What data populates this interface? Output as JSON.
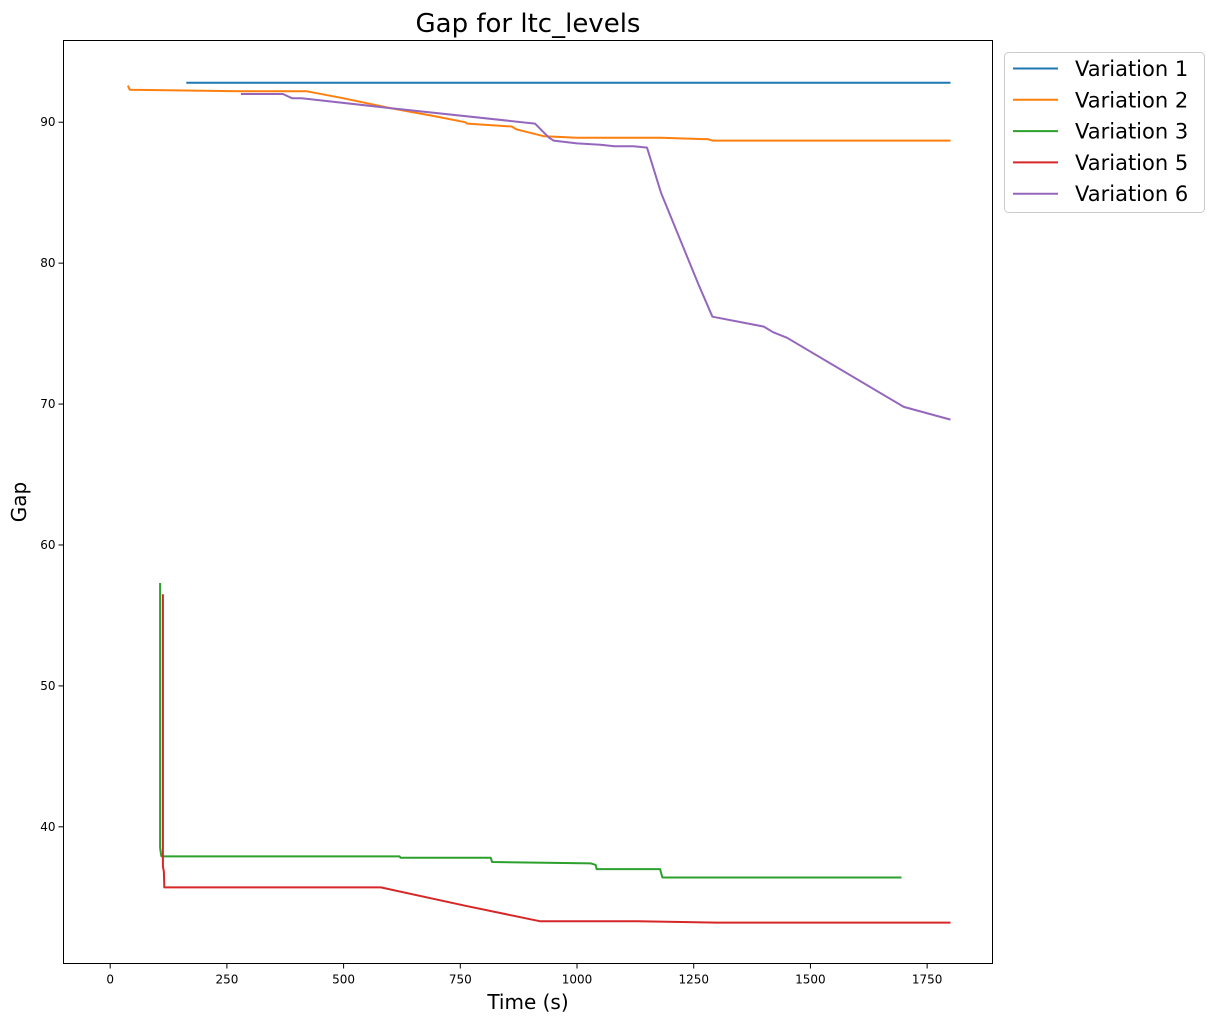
{
  "chart_data": {
    "type": "line",
    "title": "Gap for ltc_levels",
    "xlabel": "Time (s)",
    "ylabel": "Gap",
    "xlim": [
      -100,
      1890
    ],
    "ylim": [
      30.3,
      95.8
    ],
    "xticks": [
      0,
      250,
      500,
      750,
      1000,
      1250,
      1500,
      1750
    ],
    "yticks": [
      40,
      50,
      60,
      70,
      80,
      90
    ],
    "grid": false,
    "legend_position": "outside-top-right",
    "series": [
      {
        "name": "Variation 1",
        "color": "#1f77b4",
        "points": [
          [
            163,
            92.8
          ],
          [
            1800,
            92.8
          ]
        ]
      },
      {
        "name": "Variation 2",
        "color": "#ff7f0e",
        "points": [
          [
            38,
            92.6
          ],
          [
            42,
            92.3
          ],
          [
            280,
            92.2
          ],
          [
            420,
            92.2
          ],
          [
            500,
            91.7
          ],
          [
            600,
            91.0
          ],
          [
            700,
            90.4
          ],
          [
            760,
            90.0
          ],
          [
            765,
            89.9
          ],
          [
            860,
            89.7
          ],
          [
            870,
            89.5
          ],
          [
            930,
            89.0
          ],
          [
            1000,
            88.9
          ],
          [
            1180,
            88.9
          ],
          [
            1270,
            88.8
          ],
          [
            1280,
            88.8
          ],
          [
            1290,
            88.7
          ],
          [
            1800,
            88.7
          ]
        ]
      },
      {
        "name": "Variation 3",
        "color": "#2ca02c",
        "points": [
          [
            107,
            57.3
          ],
          [
            107,
            38.5
          ],
          [
            109,
            38.0
          ],
          [
            110,
            37.9
          ],
          [
            620,
            37.9
          ],
          [
            622,
            37.8
          ],
          [
            815,
            37.8
          ],
          [
            818,
            37.5
          ],
          [
            1030,
            37.4
          ],
          [
            1040,
            37.3
          ],
          [
            1042,
            37.0
          ],
          [
            1178,
            37.0
          ],
          [
            1183,
            36.4
          ],
          [
            1695,
            36.4
          ]
        ]
      },
      {
        "name": "Variation 5",
        "color": "#d62728",
        "points": [
          [
            113,
            56.5
          ],
          [
            113,
            37.2
          ],
          [
            115,
            36.8
          ],
          [
            116,
            35.7
          ],
          [
            580,
            35.7
          ],
          [
            760,
            34.4
          ],
          [
            920,
            33.3
          ],
          [
            1130,
            33.3
          ],
          [
            1300,
            33.2
          ],
          [
            1800,
            33.2
          ]
        ]
      },
      {
        "name": "Variation 6",
        "color": "#9467bd",
        "points": [
          [
            280,
            92.0
          ],
          [
            370,
            92.0
          ],
          [
            390,
            91.7
          ],
          [
            410,
            91.7
          ],
          [
            600,
            91.0
          ],
          [
            910,
            89.9
          ],
          [
            940,
            88.9
          ],
          [
            950,
            88.7
          ],
          [
            1000,
            88.5
          ],
          [
            1050,
            88.4
          ],
          [
            1080,
            88.3
          ],
          [
            1120,
            88.3
          ],
          [
            1150,
            88.2
          ],
          [
            1180,
            85.0
          ],
          [
            1260,
            78.5
          ],
          [
            1290,
            76.2
          ],
          [
            1400,
            75.5
          ],
          [
            1420,
            75.1
          ],
          [
            1450,
            74.7
          ],
          [
            1700,
            69.8
          ],
          [
            1800,
            68.9
          ]
        ]
      }
    ]
  }
}
